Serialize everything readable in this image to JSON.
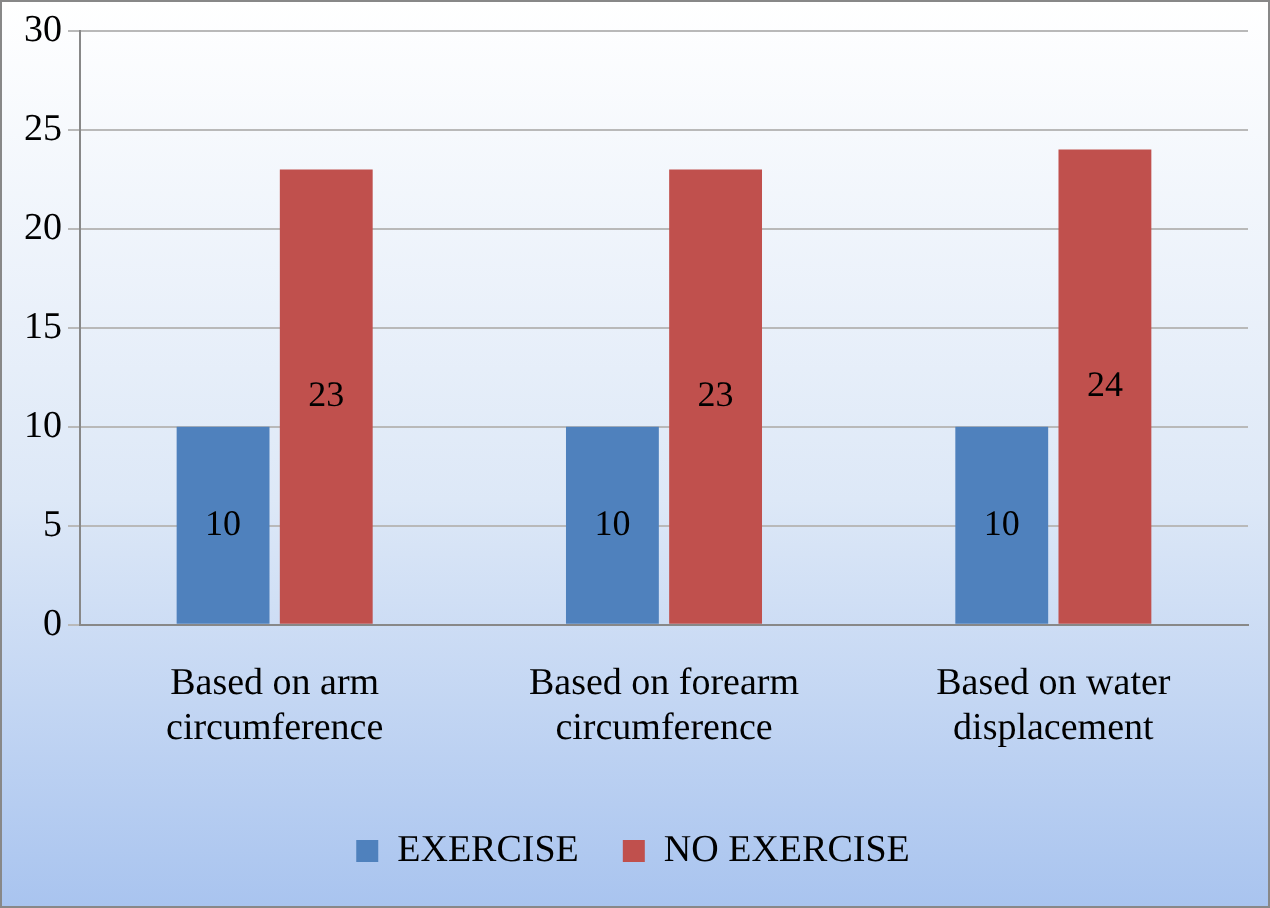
{
  "chart_data": {
    "type": "bar",
    "categories": [
      "Based on arm circumference",
      "Based on forearm circumference",
      "Based on water displacement"
    ],
    "series": [
      {
        "name": "EXERCISE",
        "color": "#4f81bd",
        "values": [
          10,
          10,
          10
        ]
      },
      {
        "name": "NO EXERCISE",
        "color": "#c0504d",
        "values": [
          23,
          23,
          24
        ]
      }
    ],
    "ylim": [
      0,
      30
    ],
    "yticks": [
      0,
      5,
      10,
      15,
      20,
      25,
      30
    ],
    "grid": "y",
    "legend": "bottom",
    "data_labels": true
  }
}
